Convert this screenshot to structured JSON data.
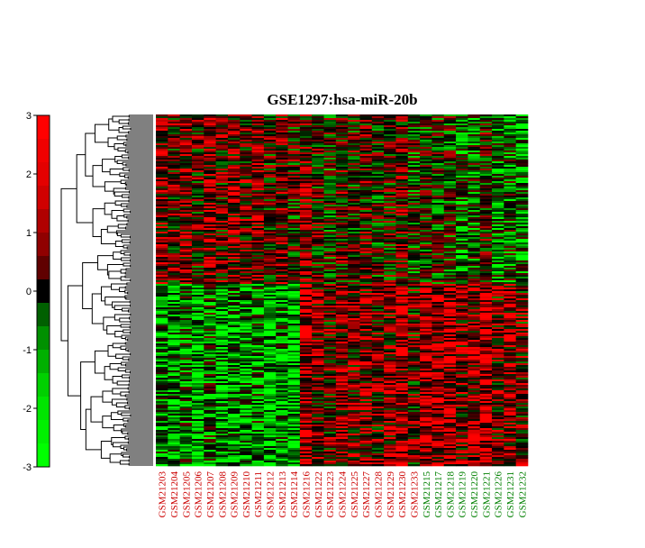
{
  "chart_data": {
    "type": "heatmap",
    "title": "GSE1297:hsa-miR-20b",
    "color_scale": {
      "ticks": [
        3,
        2,
        1,
        0,
        -1,
        -2,
        -3
      ],
      "min": -3,
      "max": 3,
      "bands": [
        "#ff0000",
        "#f00000",
        "#e40000",
        "#d00000",
        "#b00000",
        "#900000",
        "#600000",
        "#000000",
        "#006000",
        "#009000",
        "#00b000",
        "#00d000",
        "#00e400",
        "#00f000",
        "#00ff00"
      ]
    },
    "samples": [
      {
        "id": "GSM21203",
        "group_color": "#cc0000"
      },
      {
        "id": "GSM21204",
        "group_color": "#cc0000"
      },
      {
        "id": "GSM21205",
        "group_color": "#cc0000"
      },
      {
        "id": "GSM21206",
        "group_color": "#cc0000"
      },
      {
        "id": "GSM21207",
        "group_color": "#cc0000"
      },
      {
        "id": "GSM21208",
        "group_color": "#cc0000"
      },
      {
        "id": "GSM21209",
        "group_color": "#cc0000"
      },
      {
        "id": "GSM21210",
        "group_color": "#cc0000"
      },
      {
        "id": "GSM21211",
        "group_color": "#cc0000"
      },
      {
        "id": "GSM21212",
        "group_color": "#cc0000"
      },
      {
        "id": "GSM21213",
        "group_color": "#cc0000"
      },
      {
        "id": "GSM21214",
        "group_color": "#cc0000"
      },
      {
        "id": "GSM21216",
        "group_color": "#cc0000"
      },
      {
        "id": "GSM21222",
        "group_color": "#cc0000"
      },
      {
        "id": "GSM21223",
        "group_color": "#cc0000"
      },
      {
        "id": "GSM21224",
        "group_color": "#cc0000"
      },
      {
        "id": "GSM21225",
        "group_color": "#cc0000"
      },
      {
        "id": "GSM21227",
        "group_color": "#cc0000"
      },
      {
        "id": "GSM21228",
        "group_color": "#cc0000"
      },
      {
        "id": "GSM21229",
        "group_color": "#cc0000"
      },
      {
        "id": "GSM21230",
        "group_color": "#cc0000"
      },
      {
        "id": "GSM21233",
        "group_color": "#cc0000"
      },
      {
        "id": "GSM21215",
        "group_color": "#008000"
      },
      {
        "id": "GSM21217",
        "group_color": "#008000"
      },
      {
        "id": "GSM21218",
        "group_color": "#008000"
      },
      {
        "id": "GSM21219",
        "group_color": "#008000"
      },
      {
        "id": "GSM21220",
        "group_color": "#008000"
      },
      {
        "id": "GSM21221",
        "group_color": "#008000"
      },
      {
        "id": "GSM21226",
        "group_color": "#008000"
      },
      {
        "id": "GSM21231",
        "group_color": "#008000"
      },
      {
        "id": "GSM21232",
        "group_color": "#008000"
      }
    ],
    "gene_rows": 195,
    "colors": {
      "high": "#ff0000",
      "mid": "#000000",
      "low": "#00ff00",
      "group_a_label": "#cc0000",
      "group_b_label": "#008000"
    }
  }
}
